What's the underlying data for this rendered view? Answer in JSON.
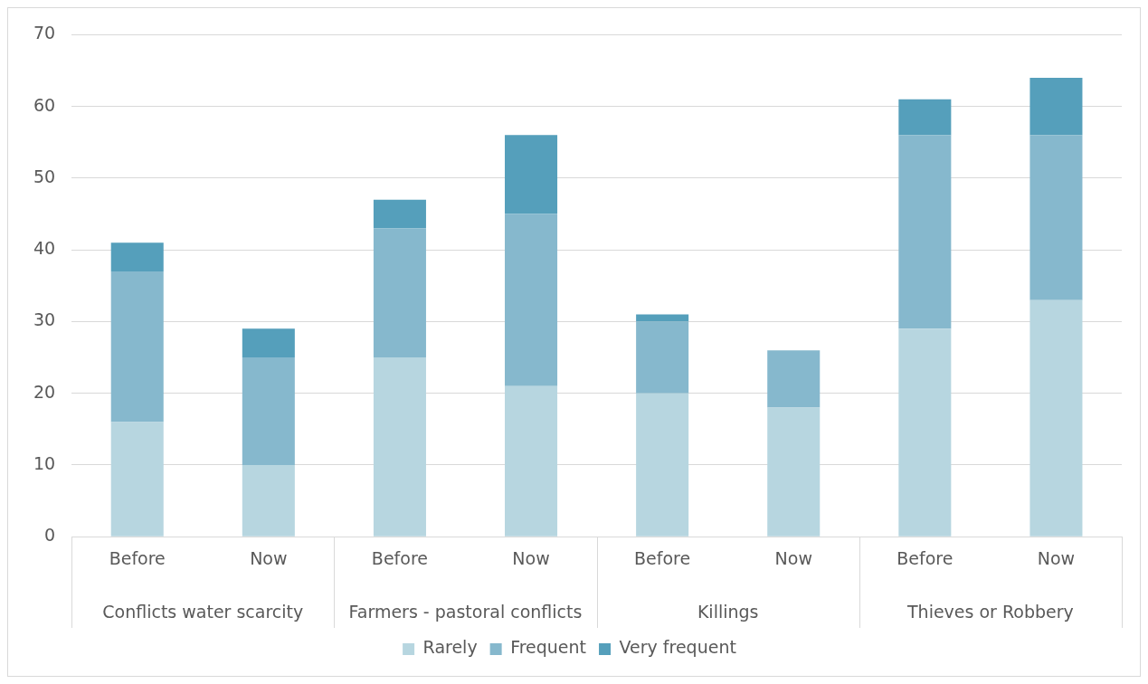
{
  "chart_data": {
    "type": "bar",
    "stacked": true,
    "categories": [
      "Before",
      "Now",
      "Before",
      "Now",
      "Before",
      "Now",
      "Before",
      "Now"
    ],
    "series": [
      {
        "name": "Rarely",
        "color": "#b7d6e0",
        "values": [
          16,
          10,
          25,
          21,
          20,
          18,
          29,
          33
        ]
      },
      {
        "name": "Frequent",
        "color": "#86b8cd",
        "values": [
          21,
          15,
          18,
          24,
          10,
          8,
          27,
          23
        ]
      },
      {
        "name": "Very frequent",
        "color": "#559fbb",
        "values": [
          4,
          4,
          4,
          11,
          1,
          0,
          5,
          8
        ]
      }
    ],
    "annotations": [
      "Conflicts water scarcity",
      "Farmers - pastoral conflicts",
      "Killings",
      "Thieves or Robbery"
    ],
    "ylim": [
      0,
      70
    ],
    "yticks": [
      0,
      10,
      20,
      30,
      40,
      50,
      60,
      70
    ],
    "grid": "y",
    "legend": "bottom"
  }
}
